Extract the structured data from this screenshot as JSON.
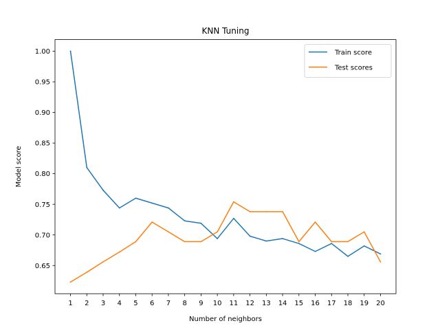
{
  "chart_data": {
    "type": "line",
    "title": "KNN Tuning",
    "xlabel": "Number of neighbors",
    "ylabel": "Model score",
    "x": [
      1,
      2,
      3,
      4,
      5,
      6,
      7,
      8,
      9,
      10,
      11,
      12,
      13,
      14,
      15,
      16,
      17,
      18,
      19,
      20
    ],
    "x_ticks": [
      "1",
      "2",
      "3",
      "4",
      "5",
      "6",
      "7",
      "8",
      "9",
      "10",
      "11",
      "12",
      "13",
      "14",
      "15",
      "16",
      "17",
      "18",
      "19",
      "20"
    ],
    "y_ticks": [
      "0.65",
      "0.70",
      "0.75",
      "0.80",
      "0.85",
      "0.90",
      "0.95",
      "1.00"
    ],
    "xlim": [
      0.05,
      20.95
    ],
    "ylim": [
      0.604,
      1.019
    ],
    "grid": false,
    "legend_position": "top-right",
    "series": [
      {
        "name": "Train score",
        "color": "#1f77b4",
        "values": [
          1.0,
          0.81,
          0.773,
          0.744,
          0.76,
          0.752,
          0.744,
          0.723,
          0.719,
          0.694,
          0.727,
          0.698,
          0.69,
          0.694,
          0.686,
          0.673,
          0.686,
          0.665,
          0.682,
          0.669
        ]
      },
      {
        "name": "Test scores",
        "color": "#ff7f0e",
        "values": [
          0.623,
          0.639,
          0.656,
          0.672,
          0.689,
          0.721,
          0.705,
          0.689,
          0.689,
          0.705,
          0.754,
          0.738,
          0.738,
          0.738,
          0.689,
          0.721,
          0.689,
          0.689,
          0.705,
          0.656
        ]
      }
    ]
  }
}
